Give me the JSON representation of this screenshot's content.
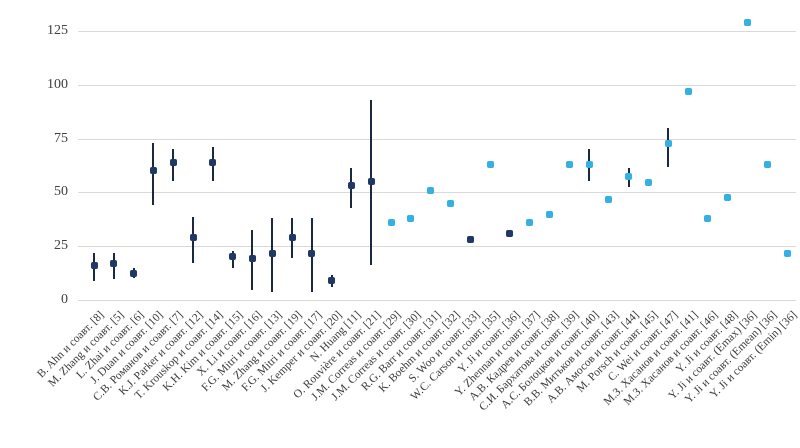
{
  "chart_data": {
    "type": "scatter",
    "title": "",
    "xlabel": "",
    "ylabel": "",
    "ylim": [
      0,
      125
    ],
    "yticks": [
      0,
      25,
      50,
      75,
      100,
      125
    ],
    "ytick_labels": [
      "0",
      "25",
      "50",
      "75",
      "100",
      "125"
    ],
    "grid": true,
    "legend": "none",
    "marker_shape": "rounded-square",
    "series_colors": {
      "dark": "#1f3864",
      "light": "#33b1e5"
    },
    "error_bar_color": "#1c2740",
    "gridline_color": "#d9d9d9",
    "points": [
      {
        "label": "B. Ahn и соавт. [8]",
        "value": 16,
        "lo": 9,
        "hi": 22,
        "series": "dark"
      },
      {
        "label": "M. Zhang и соавт. [5]",
        "value": 17,
        "lo": 10,
        "hi": 22,
        "series": "dark"
      },
      {
        "label": "L. Zhai и соавт. [6]",
        "value": 12.5,
        "lo": 10.5,
        "hi": 15,
        "series": "dark"
      },
      {
        "label": "J. Duan и соавт. [10]",
        "value": 60,
        "lo": 44,
        "hi": 73,
        "series": "dark"
      },
      {
        "label": "С.В. Романов и соавт. [7]",
        "value": 64,
        "lo": 55,
        "hi": 70,
        "series": "dark"
      },
      {
        "label": "K.J. Parker и соавт. [12]",
        "value": 29,
        "lo": 17,
        "hi": 38.5,
        "series": "dark"
      },
      {
        "label": "T. Krouskop и соавт. [14]",
        "value": 64,
        "lo": 55,
        "hi": 71,
        "series": "dark"
      },
      {
        "label": "K.H. Kim и соавт. [15]",
        "value": 20,
        "lo": 15,
        "hi": 23,
        "series": "dark"
      },
      {
        "label": "X. Li и соавт. [16]",
        "value": 19.5,
        "lo": 4.5,
        "hi": 32.5,
        "series": "dark"
      },
      {
        "label": "F.G. Mitri и соавт. [13]",
        "value": 21.5,
        "lo": 3.5,
        "hi": 38,
        "series": "dark"
      },
      {
        "label": "M. Zhang и соавт. [19]",
        "value": 29,
        "lo": 19.5,
        "hi": 38,
        "series": "dark"
      },
      {
        "label": "F.G. Mitri и соавт. [17]",
        "value": 21.5,
        "lo": 3.5,
        "hi": 38,
        "series": "dark"
      },
      {
        "label": "J. Kemper и соавт. [20]",
        "value": 9,
        "lo": 6,
        "hi": 11.5,
        "series": "dark"
      },
      {
        "label": "N. Huang [11]",
        "value": 53,
        "lo": 43,
        "hi": 61.5,
        "series": "dark"
      },
      {
        "label": "O. Rouvière и соавт. [21]",
        "value": 55,
        "lo": 16.5,
        "hi": 93,
        "series": "dark"
      },
      {
        "label": "J.M. Correas и соавт. [29]",
        "value": 36,
        "lo": null,
        "hi": null,
        "series": "light"
      },
      {
        "label": "J.M. Correas и соавт. [30]",
        "value": 38,
        "lo": null,
        "hi": null,
        "series": "light"
      },
      {
        "label": "R.G. Barr и соавт. [31]",
        "value": 51,
        "lo": null,
        "hi": null,
        "series": "light"
      },
      {
        "label": "K. Boehm и соавт. [32]",
        "value": 45,
        "lo": null,
        "hi": null,
        "series": "light"
      },
      {
        "label": "S. Woo и соавт. [33]",
        "value": 28,
        "lo": null,
        "hi": null,
        "series": "dark"
      },
      {
        "label": "W.C. Carson и соавт. [35]",
        "value": 63,
        "lo": null,
        "hi": null,
        "series": "light"
      },
      {
        "label": "Y. Ji и соавт. [36]",
        "value": 31,
        "lo": null,
        "hi": null,
        "series": "dark"
      },
      {
        "label": "Y. Zhennan и соавт. [37]",
        "value": 36,
        "lo": null,
        "hi": null,
        "series": "light"
      },
      {
        "label": "А.В. Кадрев и соавт. [38]",
        "value": 39.5,
        "lo": null,
        "hi": null,
        "series": "light"
      },
      {
        "label": "С.И. Бархатова и соавт. [39]",
        "value": 63,
        "lo": null,
        "hi": null,
        "series": "light"
      },
      {
        "label": "А.С. Болоцков и соавт. [40]",
        "value": 63,
        "lo": 55,
        "hi": 70,
        "series": "light"
      },
      {
        "label": "В.В. Митьков и соавт. [43]",
        "value": 46.5,
        "lo": null,
        "hi": null,
        "series": "light"
      },
      {
        "label": "А.В. Амосов и соавт. [44]",
        "value": 57.5,
        "lo": 52.5,
        "hi": 61.5,
        "series": "light"
      },
      {
        "label": "M. Porsch и соавт. [45]",
        "value": 54.5,
        "lo": null,
        "hi": null,
        "series": "light"
      },
      {
        "label": "C. Wei и соавт. [47]",
        "value": 72.5,
        "lo": 62,
        "hi": 80,
        "series": "light"
      },
      {
        "label": "М.З. Хасанов и соавт. [41]",
        "value": 97,
        "lo": null,
        "hi": null,
        "series": "light"
      },
      {
        "label": "М.З. Хасанов и соавт. [46]",
        "value": 38,
        "lo": null,
        "hi": null,
        "series": "light"
      },
      {
        "label": "Y. Ji и соавт. [48]",
        "value": 47.5,
        "lo": null,
        "hi": null,
        "series": "light"
      },
      {
        "label": "Y. Ji и соавт. (Emax) [36]",
        "value": 129,
        "lo": null,
        "hi": null,
        "series": "light"
      },
      {
        "label": "Y. Ji и соавт. (Emean) [36]",
        "value": 63,
        "lo": null,
        "hi": null,
        "series": "light"
      },
      {
        "label": "Y. Ji и соавт. (Emin) [36]",
        "value": 21.5,
        "lo": null,
        "hi": null,
        "series": "light"
      }
    ]
  }
}
